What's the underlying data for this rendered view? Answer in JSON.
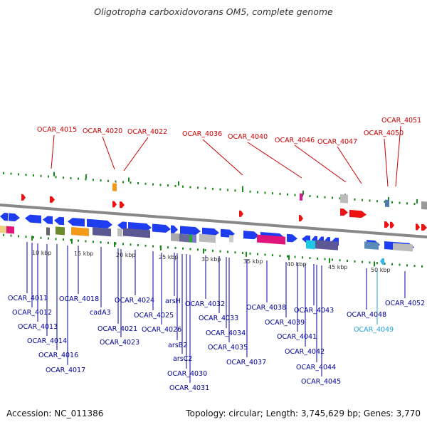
{
  "title": "Oligotropha carboxidovorans OM5, complete genome",
  "footer": {
    "accession": "Accession: NC_011386",
    "summary": "Topology: circular; Length: 3,745,629 bp; Genes: 3,770"
  },
  "colors": {
    "top_label": "#cc0000",
    "bottom_label": "#000099",
    "highlight_label": "#22a0d8",
    "forward_gene": "#1e3cf0",
    "reverse_gene": "#ee1111",
    "backbone": "#888888",
    "tick": "#1a8a1a"
  },
  "scale_ticks": [
    {
      "label": "10 kbp"
    },
    {
      "label": "15 kbp"
    },
    {
      "label": "20 kbp"
    },
    {
      "label": "25 kbp"
    },
    {
      "label": "30 kbp"
    },
    {
      "label": "35 kbp"
    },
    {
      "label": "40 kbp"
    },
    {
      "label": "45 kbp"
    },
    {
      "label": "50 kbp"
    }
  ],
  "top_labels": [
    "OCAR_4015",
    "OCAR_4020",
    "OCAR_4022",
    "OCAR_4036",
    "OCAR_4040",
    "OCAR_4046",
    "OCAR_4047",
    "OCAR_4050",
    "OCAR_4051"
  ],
  "bottom_labels": [
    "OCAR_4011",
    "OCAR_4012",
    "OCAR_4013",
    "OCAR_4014",
    "OCAR_4016",
    "OCAR_4017",
    "OCAR_4018",
    "cadA3",
    "OCAR_4021",
    "OCAR_4023",
    "OCAR_4024",
    "OCAR_4025",
    "OCAR_4026",
    "arsH",
    "arsB2",
    "arsC2",
    "OCAR_4030",
    "OCAR_4031",
    "OCAR_4032",
    "OCAR_4033",
    "OCAR_4034",
    "OCAR_4035",
    "OCAR_4037",
    "OCAR_4038",
    "OCAR_4039",
    "OCAR_4041",
    "OCAR_4042",
    "OCAR_4043",
    "OCAR_4044",
    "OCAR_4045",
    "OCAR_4048",
    "OCAR_4049",
    "OCAR_4052"
  ]
}
